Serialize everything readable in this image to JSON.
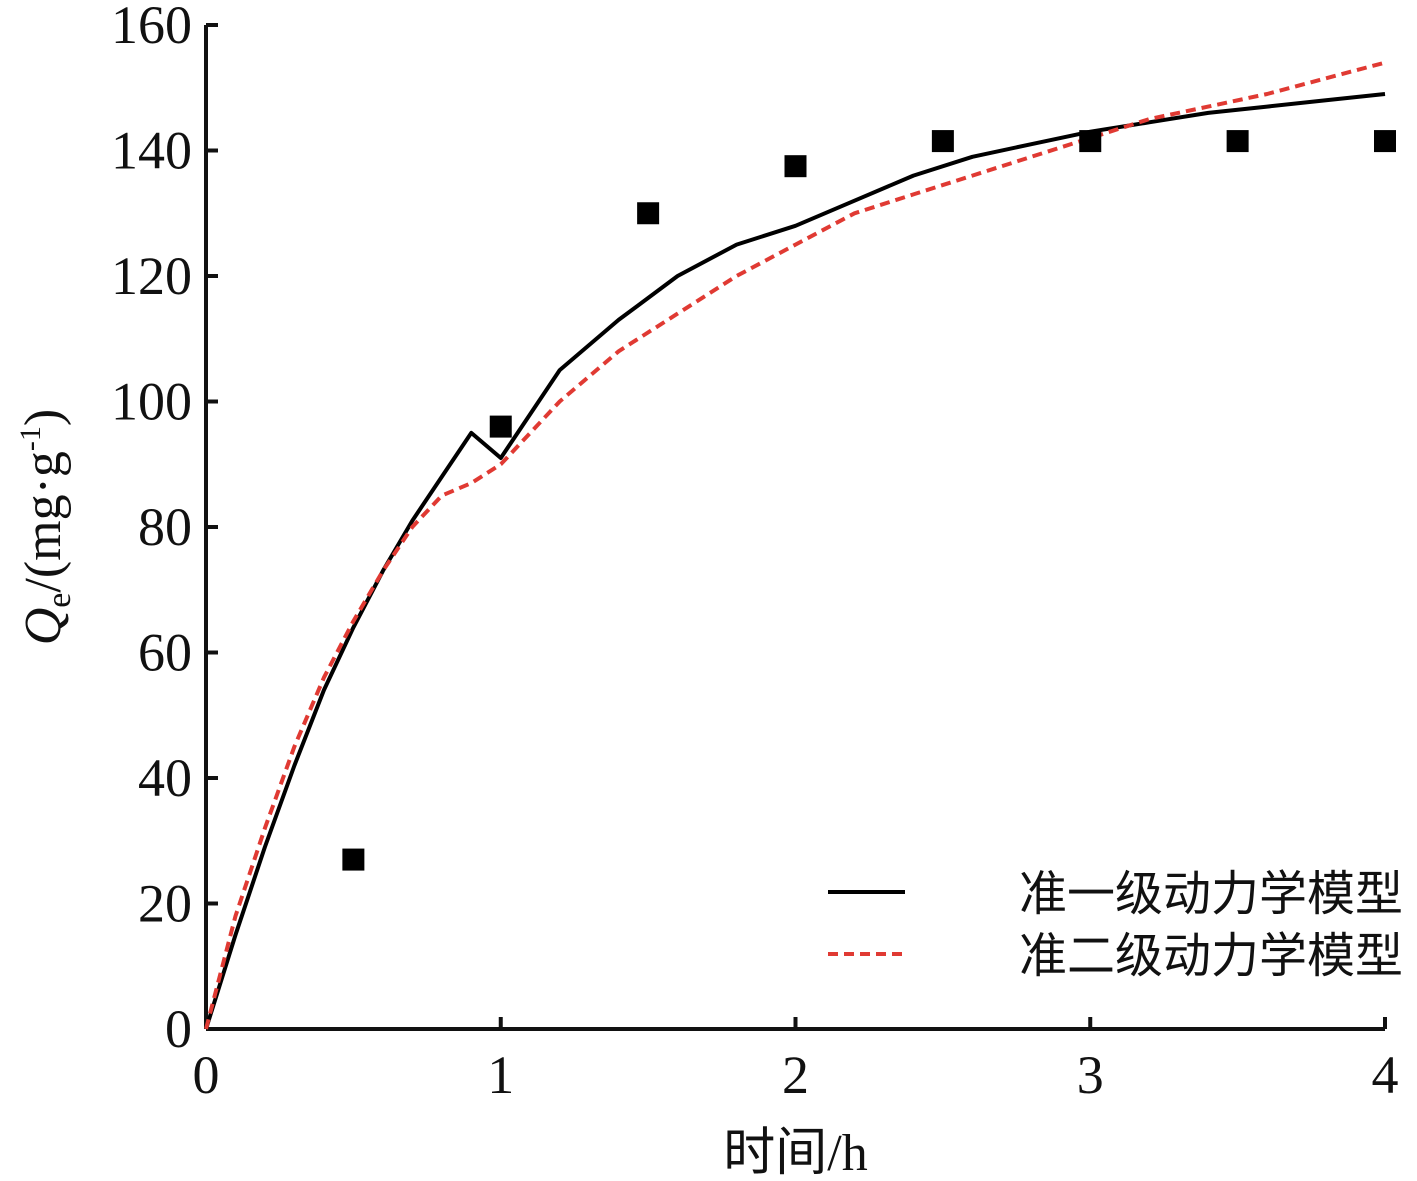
{
  "chart_data": {
    "type": "scatter",
    "xlabel": "时间/h",
    "ylabel": {
      "symbol": "Q",
      "subscript": "e",
      "unit_prefix": "/(mg·g",
      "unit_sup": "-1",
      "unit_suffix": ")"
    },
    "xlim": [
      0,
      4
    ],
    "ylim": [
      0,
      160
    ],
    "xticks": [
      0,
      1,
      2,
      3,
      4
    ],
    "yticks": [
      0,
      20,
      40,
      60,
      80,
      100,
      120,
      140,
      160
    ],
    "grid": false,
    "legend_position": "bottom-right",
    "observed": {
      "marker": "square",
      "color": "#000000",
      "points": [
        {
          "x": 0.5,
          "y": 27
        },
        {
          "x": 1.0,
          "y": 96
        },
        {
          "x": 1.5,
          "y": 130
        },
        {
          "x": 2.0,
          "y": 137.5
        },
        {
          "x": 2.5,
          "y": 141.5
        },
        {
          "x": 3.0,
          "y": 141.5
        },
        {
          "x": 3.5,
          "y": 141.5
        },
        {
          "x": 4.0,
          "y": 141.5
        }
      ]
    },
    "series": [
      {
        "name": "准一级动力学模型",
        "color": "#000000",
        "style": "solid",
        "x": [
          0,
          0.1,
          0.2,
          0.3,
          0.4,
          0.5,
          0.6,
          0.7,
          0.8,
          0.9,
          1.0,
          1.2,
          1.4,
          1.6,
          1.8,
          2.0,
          2.2,
          2.4,
          2.6,
          2.8,
          3.0,
          3.2,
          3.4,
          3.6,
          3.8,
          4.0
        ],
        "y": [
          0,
          15,
          29,
          42,
          54,
          64,
          73,
          81,
          88,
          95,
          91,
          105,
          113,
          120,
          125,
          128,
          132,
          136,
          139,
          141,
          143,
          144.5,
          146,
          147,
          148,
          149
        ]
      },
      {
        "name": "准二级动力学模型",
        "color": "#e03a33",
        "style": "dashed",
        "x": [
          0,
          0.1,
          0.2,
          0.3,
          0.4,
          0.5,
          0.6,
          0.7,
          0.8,
          0.9,
          1.0,
          1.2,
          1.4,
          1.6,
          1.8,
          2.0,
          2.2,
          2.4,
          2.6,
          2.8,
          3.0,
          3.2,
          3.4,
          3.6,
          3.8,
          4.0
        ],
        "y": [
          0,
          18,
          32,
          45,
          56,
          65,
          73,
          80,
          85,
          87,
          90,
          100,
          108,
          114,
          120,
          125,
          130,
          133,
          136,
          139,
          142,
          145,
          147,
          149,
          151.5,
          154
        ]
      }
    ]
  }
}
